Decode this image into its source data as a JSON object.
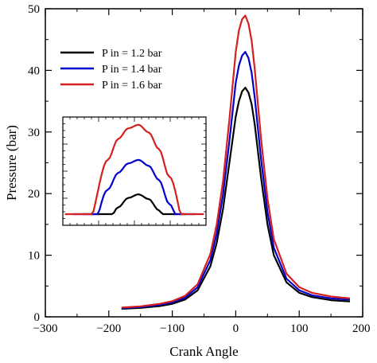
{
  "chart_data": {
    "type": "line",
    "title": "",
    "xlabel": "Crank Angle",
    "ylabel": "Pressure (bar)",
    "xlim": [
      -300,
      200
    ],
    "ylim": [
      0,
      50
    ],
    "xticks": [
      -300,
      -200,
      -100,
      0,
      100,
      200
    ],
    "xtick_labels": [
      "−300",
      "−200",
      "−100",
      "0",
      "100",
      "200"
    ],
    "yticks": [
      0,
      10,
      20,
      30,
      40,
      50
    ],
    "ytick_labels": [
      "0",
      "10",
      "20",
      "30",
      "40",
      "50"
    ],
    "grid": false,
    "legend": "top-left",
    "inset": "zoom of the peak region, drawn inside the plot on the left",
    "series": [
      {
        "name": "P in = 1.2 bar",
        "color": "#000000",
        "x": [
          -180,
          -150,
          -120,
          -100,
          -80,
          -60,
          -40,
          -30,
          -20,
          -10,
          0,
          5,
          10,
          15,
          20,
          25,
          30,
          40,
          50,
          60,
          80,
          100,
          120,
          150,
          180
        ],
        "y": [
          1.3,
          1.45,
          1.75,
          2.1,
          2.8,
          4.3,
          8.2,
          12.0,
          17.5,
          25.0,
          32.5,
          35.0,
          36.6,
          37.2,
          36.4,
          34.5,
          31.2,
          22.5,
          15.0,
          10.0,
          5.6,
          3.9,
          3.2,
          2.7,
          2.5
        ]
      },
      {
        "name": "P in = 1.4 bar",
        "color": "#0000cc",
        "x": [
          -180,
          -150,
          -120,
          -100,
          -80,
          -60,
          -40,
          -30,
          -20,
          -10,
          0,
          5,
          10,
          15,
          20,
          25,
          30,
          40,
          50,
          60,
          80,
          100,
          120,
          150,
          180
        ],
        "y": [
          1.4,
          1.6,
          1.95,
          2.35,
          3.1,
          4.8,
          9.2,
          13.5,
          19.8,
          28.5,
          38.0,
          40.8,
          42.4,
          43.0,
          42.0,
          39.6,
          35.6,
          25.5,
          17.0,
          11.2,
          6.2,
          4.3,
          3.5,
          3.0,
          2.8
        ]
      },
      {
        "name": "P in = 1.6 bar",
        "color": "#d42020",
        "x": [
          -180,
          -150,
          -120,
          -100,
          -80,
          -60,
          -40,
          -30,
          -20,
          -10,
          0,
          5,
          10,
          15,
          20,
          25,
          30,
          40,
          50,
          60,
          80,
          100,
          120,
          150,
          180
        ],
        "y": [
          1.5,
          1.7,
          2.1,
          2.55,
          3.4,
          5.3,
          10.2,
          15.0,
          22.0,
          32.0,
          43.0,
          46.5,
          48.3,
          48.9,
          47.6,
          44.8,
          40.2,
          28.8,
          19.2,
          12.6,
          7.0,
          4.8,
          3.9,
          3.3,
          3.0
        ]
      }
    ]
  }
}
